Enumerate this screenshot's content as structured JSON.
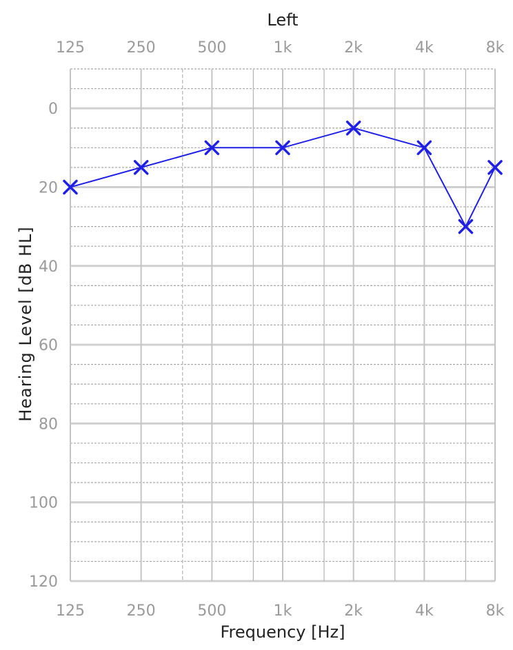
{
  "chart_data": {
    "type": "line",
    "title": "Left",
    "xlabel": "Frequency [Hz]",
    "ylabel": "Hearing Level [dB HL]",
    "x_scale": "log2",
    "x_ticks": [
      {
        "value": 125,
        "label": "125"
      },
      {
        "value": 250,
        "label": "250"
      },
      {
        "value": 500,
        "label": "500"
      },
      {
        "value": 1000,
        "label": "1k"
      },
      {
        "value": 2000,
        "label": "2k"
      },
      {
        "value": 4000,
        "label": "4k"
      },
      {
        "value": 8000,
        "label": "8k"
      }
    ],
    "x_minor_gridlines": [
      375,
      750,
      1500,
      3000,
      6000
    ],
    "y_ticks": [
      0,
      20,
      40,
      60,
      80,
      100,
      120
    ],
    "ylim": [
      -10,
      120
    ],
    "y_inverted": true,
    "grid": true,
    "series": [
      {
        "marker": "x",
        "color": "#1f1fe6",
        "points": [
          {
            "x": 125,
            "y": 20
          },
          {
            "x": 250,
            "y": 15
          },
          {
            "x": 500,
            "y": 10
          },
          {
            "x": 1000,
            "y": 10
          },
          {
            "x": 2000,
            "y": 5
          },
          {
            "x": 4000,
            "y": 10
          },
          {
            "x": 6000,
            "y": 30
          },
          {
            "x": 8000,
            "y": 15
          }
        ]
      }
    ]
  }
}
